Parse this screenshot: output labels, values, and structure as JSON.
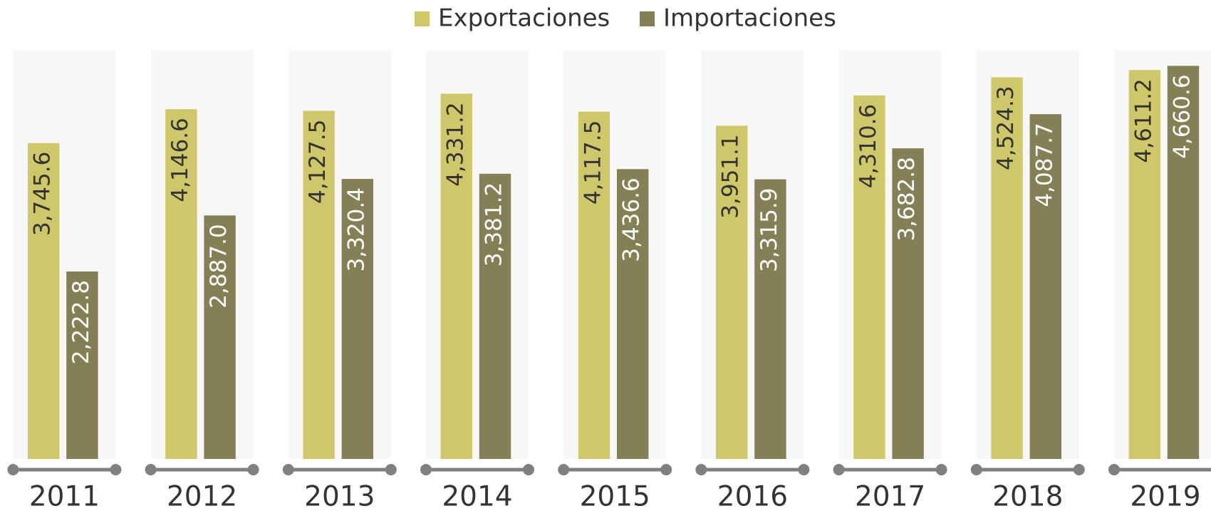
{
  "chart_data": {
    "type": "bar",
    "categories": [
      "2011",
      "2012",
      "2013",
      "2014",
      "2015",
      "2016",
      "2017",
      "2018",
      "2019"
    ],
    "series": [
      {
        "name": "Exportaciones",
        "color": "#cfc86a",
        "values": [
          3745.6,
          4146.6,
          4127.5,
          4331.2,
          4117.5,
          3951.1,
          4310.6,
          4524.3,
          4611.2
        ],
        "value_labels": [
          "3,745.6",
          "4,146.6",
          "4,127.5",
          "4,331.2",
          "4,117.5",
          "3,951.1",
          "4,310.6",
          "4,524.3",
          "4,611.2"
        ]
      },
      {
        "name": "Importaciones",
        "color": "#847f55",
        "values": [
          2222.8,
          2887.0,
          3320.4,
          3381.2,
          3436.6,
          3315.9,
          3682.8,
          4087.7,
          4660.6
        ],
        "value_labels": [
          "2,222.8",
          "2,887.0",
          "3,320.4",
          "3,381.2",
          "3,436.6",
          "3,315.9",
          "3,682.8",
          "4,087.7",
          "4,660.6"
        ]
      }
    ],
    "ylim": [
      0,
      4850
    ],
    "legend": "top"
  }
}
